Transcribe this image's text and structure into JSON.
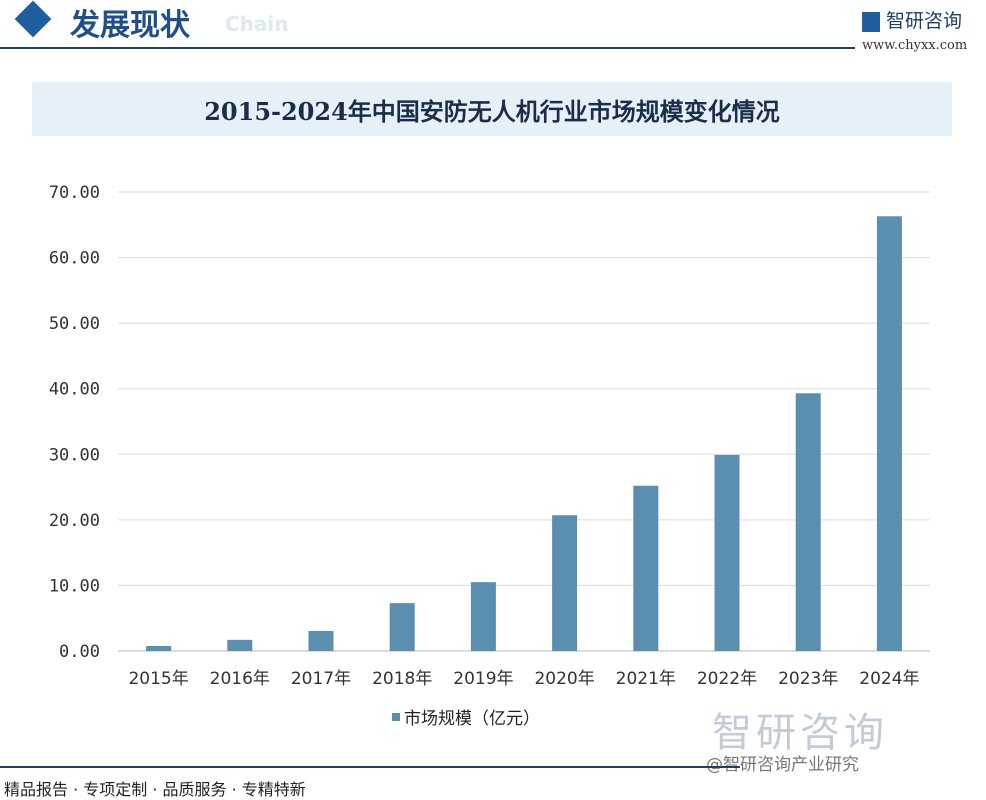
{
  "header": {
    "section_title": "发展现状",
    "ghost_text": "Chain",
    "logo_text": "智研咨询",
    "url": "www.chyxx.com"
  },
  "chart_data": {
    "type": "bar",
    "title": "2015-2024年中国安防无人机行业市场规模变化情况",
    "categories": [
      "2015年",
      "2016年",
      "2017年",
      "2018年",
      "2019年",
      "2020年",
      "2021年",
      "2022年",
      "2023年",
      "2024年"
    ],
    "series": [
      {
        "name": "市场规模（亿元）",
        "values": [
          0.76,
          1.7,
          3.05,
          7.3,
          10.5,
          20.7,
          25.2,
          29.9,
          39.3,
          66.3
        ],
        "color": "#5b8fb0"
      }
    ],
    "yticks": [
      "0.00",
      "10.00",
      "20.00",
      "30.00",
      "40.00",
      "50.00",
      "60.00",
      "70.00"
    ],
    "ylim": [
      0,
      70
    ],
    "grid": true,
    "legend": "bottom"
  },
  "watermark": {
    "logo_text": "智研咨询"
  },
  "footer": {
    "slogan": "精品报告 · 专项定制 · 品质服务 · 专精特新",
    "source": "@智研咨询产业研究"
  }
}
